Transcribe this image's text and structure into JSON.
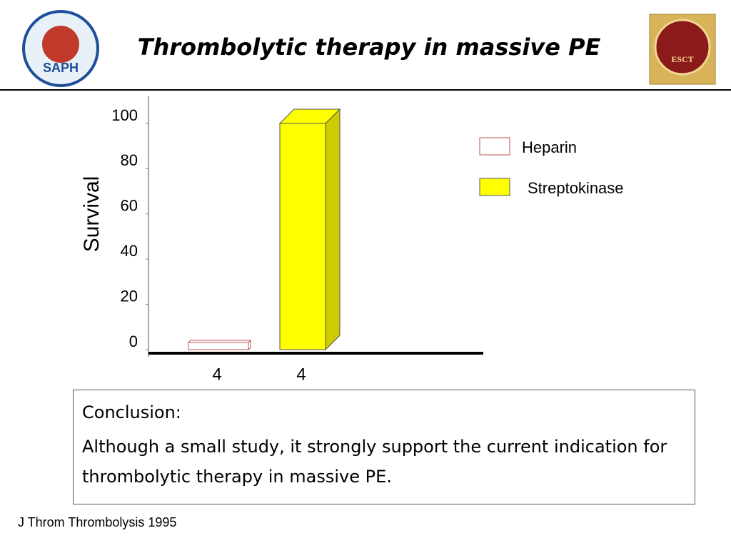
{
  "header": {
    "title": "Thrombolytic therapy in massive PE",
    "left_logo": "SAPH",
    "right_logo": "ESCT"
  },
  "chart_data": {
    "type": "bar3d",
    "ylabel": "Survival",
    "categories": [
      "4",
      "4"
    ],
    "series": [
      {
        "name": "Heparin",
        "color": "#ffffff",
        "edge": "#c0504d",
        "values": [
          0,
          null
        ]
      },
      {
        "name": "Streptokinase",
        "color": "#ffff00",
        "edge": "#555555",
        "values": [
          null,
          100
        ]
      }
    ],
    "ylim": [
      0,
      100
    ],
    "yticks": [
      0,
      20,
      40,
      60,
      80,
      100
    ],
    "grid": false,
    "legend": "upper right"
  },
  "conclusion": {
    "heading": "Conclusion:",
    "text": "Although a small study, it strongly support the current indication for thrombolytic therapy in massive PE."
  },
  "citation": "J Throm Thrombolysis 1995"
}
